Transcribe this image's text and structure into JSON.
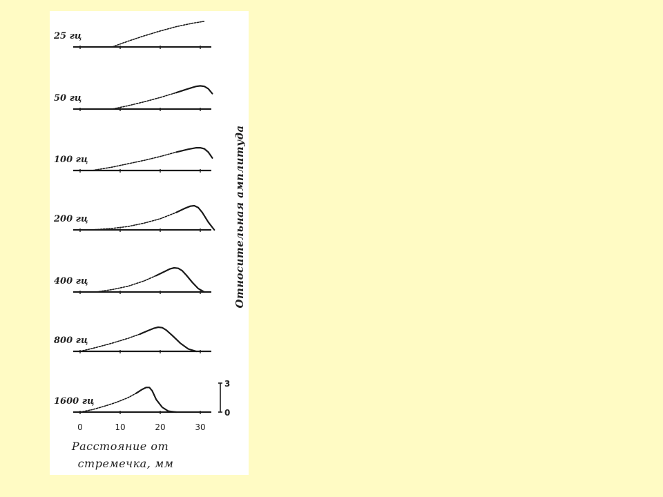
{
  "slide": {
    "background": "#FFFBC4"
  },
  "chart_data": {
    "type": "line",
    "title": "",
    "xlabel_line1": "Расстояние от",
    "xlabel_line2": "стремечка, мм",
    "ylabel": "Относительная амплитуда",
    "x_ticks": [
      0,
      10,
      20,
      30
    ],
    "x_tick_labels": [
      "0",
      "10",
      "20",
      "30"
    ],
    "xlim": [
      0,
      33
    ],
    "ylim": [
      0,
      3
    ],
    "y_scale_labels": [
      "3",
      "0"
    ],
    "line_color": "#1a1a1a",
    "series": [
      {
        "name": "25 гц",
        "x": [
          8,
          12,
          16,
          20,
          24,
          28,
          31
        ],
        "y": [
          0,
          0.6,
          1.15,
          1.65,
          2.1,
          2.45,
          2.65
        ]
      },
      {
        "name": "50 гц",
        "x": [
          8,
          12,
          16,
          20,
          24,
          27,
          29,
          30,
          31,
          32,
          33
        ],
        "y": [
          0,
          0.35,
          0.75,
          1.2,
          1.7,
          2.1,
          2.35,
          2.4,
          2.35,
          2.1,
          1.6
        ]
      },
      {
        "name": "100 гц",
        "x": [
          3,
          8,
          12,
          16,
          20,
          24,
          27,
          29,
          30,
          31,
          32,
          33
        ],
        "y": [
          0,
          0.35,
          0.7,
          1.05,
          1.45,
          1.9,
          2.2,
          2.35,
          2.35,
          2.25,
          1.9,
          1.3
        ]
      },
      {
        "name": "200 гц",
        "x": [
          3,
          8,
          12,
          16,
          20,
          24,
          26,
          27.5,
          28.5,
          29.5,
          30.5,
          32,
          33.5
        ],
        "y": [
          0,
          0.15,
          0.35,
          0.7,
          1.15,
          1.8,
          2.2,
          2.45,
          2.5,
          2.3,
          1.8,
          0.8,
          0
        ]
      },
      {
        "name": "400 гц",
        "x": [
          4,
          8,
          12,
          16,
          19,
          21,
          22.5,
          23.5,
          24.5,
          25.5,
          26.5,
          28,
          29.5,
          31
        ],
        "y": [
          0,
          0.25,
          0.6,
          1.15,
          1.7,
          2.1,
          2.4,
          2.5,
          2.45,
          2.2,
          1.75,
          1.0,
          0.35,
          0
        ]
      },
      {
        "name": "800 гц",
        "x": [
          0,
          4,
          8,
          12,
          15,
          17,
          18.5,
          19.5,
          20.5,
          21.5,
          23,
          25,
          27,
          29
        ],
        "y": [
          0,
          0.4,
          0.85,
          1.35,
          1.8,
          2.15,
          2.4,
          2.5,
          2.45,
          2.2,
          1.65,
          0.85,
          0.25,
          0
        ]
      },
      {
        "name": "1600 гц",
        "x": [
          0,
          3,
          6,
          9,
          12,
          14,
          15.5,
          16.5,
          17.3,
          18,
          19,
          20.5,
          22,
          24
        ],
        "y": [
          0,
          0.25,
          0.6,
          1.0,
          1.5,
          1.95,
          2.35,
          2.55,
          2.55,
          2.2,
          1.3,
          0.5,
          0.1,
          0
        ]
      }
    ]
  }
}
